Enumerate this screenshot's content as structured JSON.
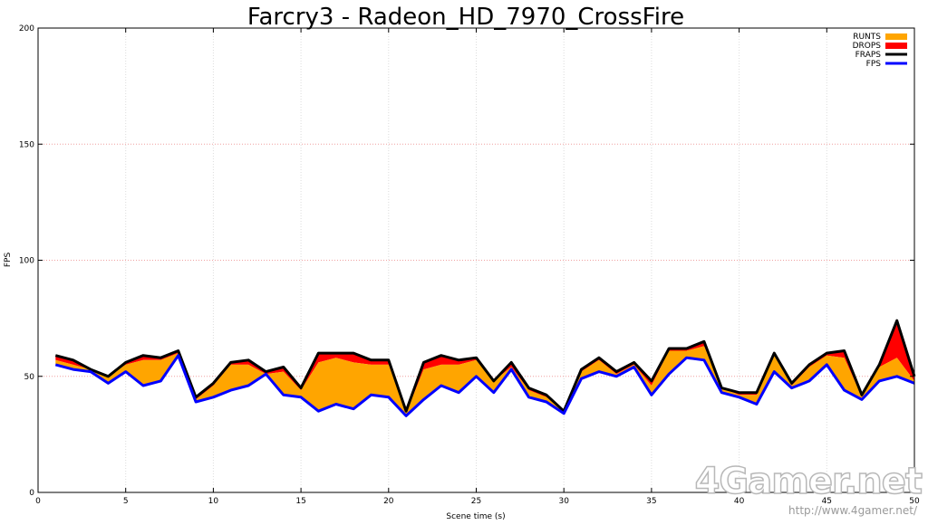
{
  "chart_data": {
    "type": "area",
    "title": "Farcry3 - Radeon_HD_7970_CrossFire",
    "xlabel": "Scene time (s)",
    "ylabel": "FPS",
    "xlim": [
      0,
      50
    ],
    "ylim": [
      0,
      200
    ],
    "xticks": [
      0,
      5,
      10,
      15,
      20,
      25,
      30,
      35,
      40,
      45,
      50
    ],
    "yticks": [
      0,
      50,
      100,
      150,
      200
    ],
    "grid": true,
    "legend_position": "top-right",
    "x": [
      1,
      2,
      3,
      4,
      5,
      6,
      7,
      8,
      9,
      10,
      11,
      12,
      13,
      14,
      15,
      16,
      17,
      18,
      19,
      20,
      21,
      22,
      23,
      24,
      25,
      26,
      27,
      28,
      29,
      30,
      31,
      32,
      33,
      34,
      35,
      36,
      37,
      38,
      39,
      40,
      41,
      42,
      43,
      44,
      45,
      46,
      47,
      48,
      49,
      50
    ],
    "series": [
      {
        "name": "RUNTS",
        "color": "#ffa500",
        "values": [
          57,
          55,
          53,
          50,
          55,
          57,
          57,
          60,
          40,
          46,
          55,
          55,
          51,
          52,
          44,
          56,
          58,
          56,
          55,
          55,
          34,
          53,
          55,
          55,
          57,
          48,
          54,
          44,
          41,
          35,
          52,
          57,
          51,
          55,
          46,
          61,
          61,
          63,
          45,
          42,
          42,
          59,
          46,
          54,
          59,
          58,
          41,
          54,
          58,
          48
        ]
      },
      {
        "name": "DROPS",
        "color": "#ff0000",
        "values": [
          59,
          57,
          53,
          50,
          56,
          59,
          58,
          61,
          41,
          47,
          56,
          57,
          52,
          54,
          45,
          60,
          60,
          60,
          57,
          57,
          35,
          56,
          59,
          57,
          58,
          48,
          56,
          45,
          42,
          35,
          53,
          58,
          52,
          56,
          48,
          62,
          62,
          65,
          45,
          43,
          43,
          60,
          47,
          55,
          60,
          61,
          42,
          55,
          74,
          50
        ]
      },
      {
        "name": "FRAPS",
        "color": "#000000",
        "values": [
          59,
          57,
          53,
          50,
          56,
          59,
          58,
          61,
          41,
          47,
          56,
          57,
          52,
          54,
          45,
          60,
          60,
          60,
          57,
          57,
          35,
          56,
          59,
          57,
          58,
          48,
          56,
          45,
          42,
          35,
          53,
          58,
          52,
          56,
          48,
          62,
          62,
          65,
          45,
          43,
          43,
          60,
          47,
          55,
          60,
          61,
          42,
          55,
          74,
          50
        ]
      },
      {
        "name": "FPS",
        "color": "#0000ff",
        "values": [
          55,
          53,
          52,
          47,
          52,
          46,
          48,
          59,
          39,
          41,
          44,
          46,
          51,
          42,
          41,
          35,
          38,
          36,
          42,
          41,
          33,
          40,
          46,
          43,
          50,
          43,
          53,
          41,
          39,
          34,
          49,
          52,
          50,
          54,
          42,
          51,
          58,
          57,
          43,
          41,
          38,
          52,
          45,
          48,
          55,
          44,
          40,
          48,
          50,
          47
        ]
      }
    ]
  },
  "watermark": {
    "brand": "4Gamer.net",
    "url": "http://www.4gamer.net/"
  }
}
